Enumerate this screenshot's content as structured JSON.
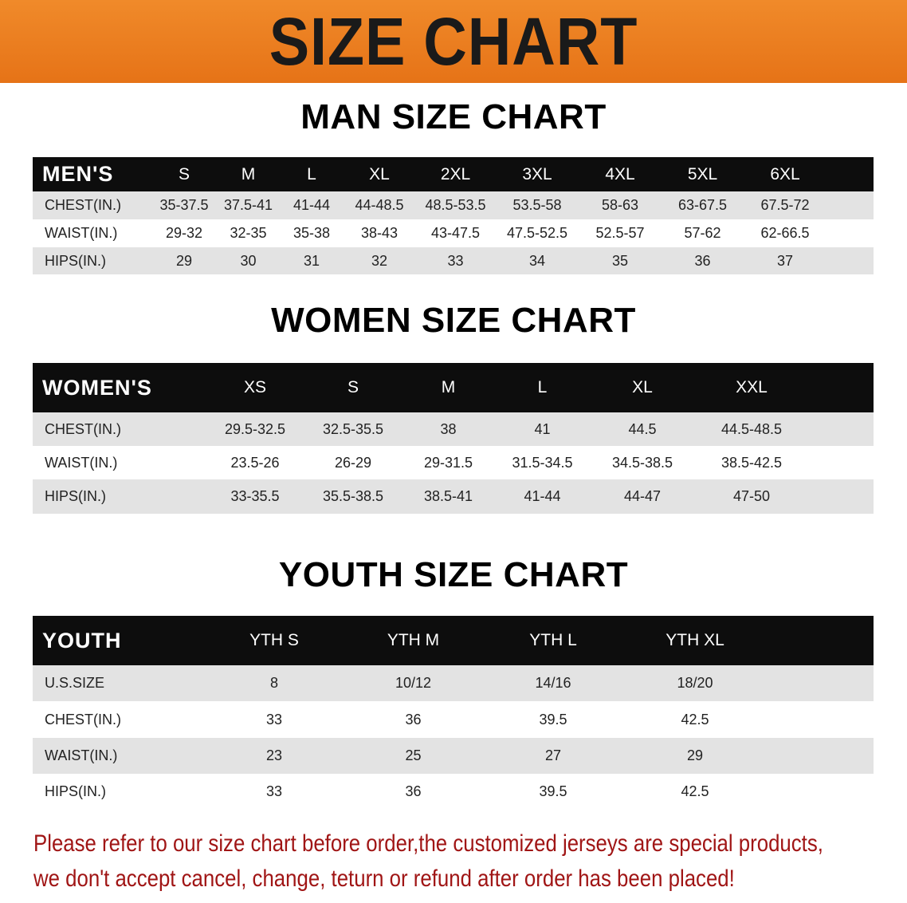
{
  "title": "SIZE CHART",
  "men": {
    "heading": "MAN SIZE CHART",
    "columns": [
      "MEN'S",
      "S",
      "M",
      "L",
      "XL",
      "2XL",
      "3XL",
      "4XL",
      "5XL",
      "6XL"
    ],
    "rows": [
      [
        "CHEST(IN.)",
        "35-37.5",
        "37.5-41",
        "41-44",
        "44-48.5",
        "48.5-53.5",
        "53.5-58",
        "58-63",
        "63-67.5",
        "67.5-72"
      ],
      [
        "WAIST(IN.)",
        "29-32",
        "32-35",
        "35-38",
        "38-43",
        "43-47.5",
        "47.5-52.5",
        "52.5-57",
        "57-62",
        "62-66.5"
      ],
      [
        "HIPS(IN.)",
        "29",
        "30",
        "31",
        "32",
        "33",
        "34",
        "35",
        "36",
        "37"
      ]
    ]
  },
  "women": {
    "heading": "WOMEN SIZE CHART",
    "columns": [
      "WOMEN'S",
      "XS",
      "S",
      "M",
      "L",
      "XL",
      "XXL"
    ],
    "rows": [
      [
        "CHEST(IN.)",
        "29.5-32.5",
        "32.5-35.5",
        "38",
        "41",
        "44.5",
        "44.5-48.5"
      ],
      [
        "WAIST(IN.)",
        "23.5-26",
        "26-29",
        "29-31.5",
        "31.5-34.5",
        "34.5-38.5",
        "38.5-42.5"
      ],
      [
        "HIPS(IN.)",
        "33-35.5",
        "35.5-38.5",
        "38.5-41",
        "41-44",
        "44-47",
        "47-50"
      ]
    ]
  },
  "youth": {
    "heading": "YOUTH SIZE CHART",
    "columns": [
      "YOUTH",
      "YTH S",
      "YTH M",
      "YTH L",
      "YTH XL"
    ],
    "rows": [
      [
        "U.S.SIZE",
        "8",
        "10/12",
        "14/16",
        "18/20"
      ],
      [
        "CHEST(IN.)",
        "33",
        "36",
        "39.5",
        "42.5"
      ],
      [
        "WAIST(IN.)",
        "23",
        "25",
        "27",
        "29"
      ],
      [
        "HIPS(IN.)",
        "33",
        "36",
        "39.5",
        "42.5"
      ]
    ]
  },
  "notice": {
    "line1": "Please refer to our size chart before order,the customized jerseys are special products,",
    "line2": "we don't accept cancel, change, teturn or refund after order has been placed!"
  },
  "colors": {
    "banner": "#e67317",
    "header_row": "#0d0d0d",
    "stripe": "#e3e3e3",
    "notice": "#a01515"
  }
}
